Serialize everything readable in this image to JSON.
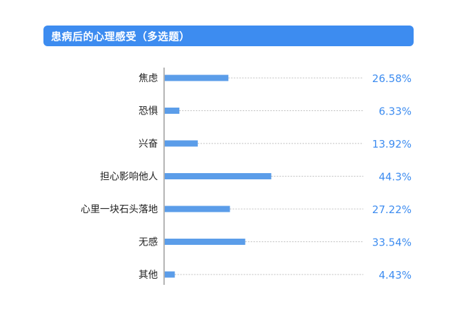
{
  "colors": {
    "accent": "#3d8cf0",
    "bar": "#5b9de9",
    "axis": "#9a9a9a",
    "leader": "#bcbcbc",
    "text": "#222222"
  },
  "chart_data": {
    "type": "bar",
    "orientation": "horizontal",
    "title": "患病后的心理感受（多选题）",
    "categories": [
      "焦虑",
      "恐惧",
      "兴奋",
      "担心影响他人",
      "心里一块石头落地",
      "无感",
      "其他"
    ],
    "values": [
      26.58,
      6.33,
      13.92,
      44.3,
      27.22,
      33.54,
      4.43
    ],
    "value_labels": [
      "26.58%",
      "6.33%",
      "13.92%",
      "44.3%",
      "27.22%",
      "33.54%",
      "4.43%"
    ],
    "unit": "%",
    "xlim": [
      0,
      100
    ],
    "grid": false,
    "legend": "none"
  }
}
